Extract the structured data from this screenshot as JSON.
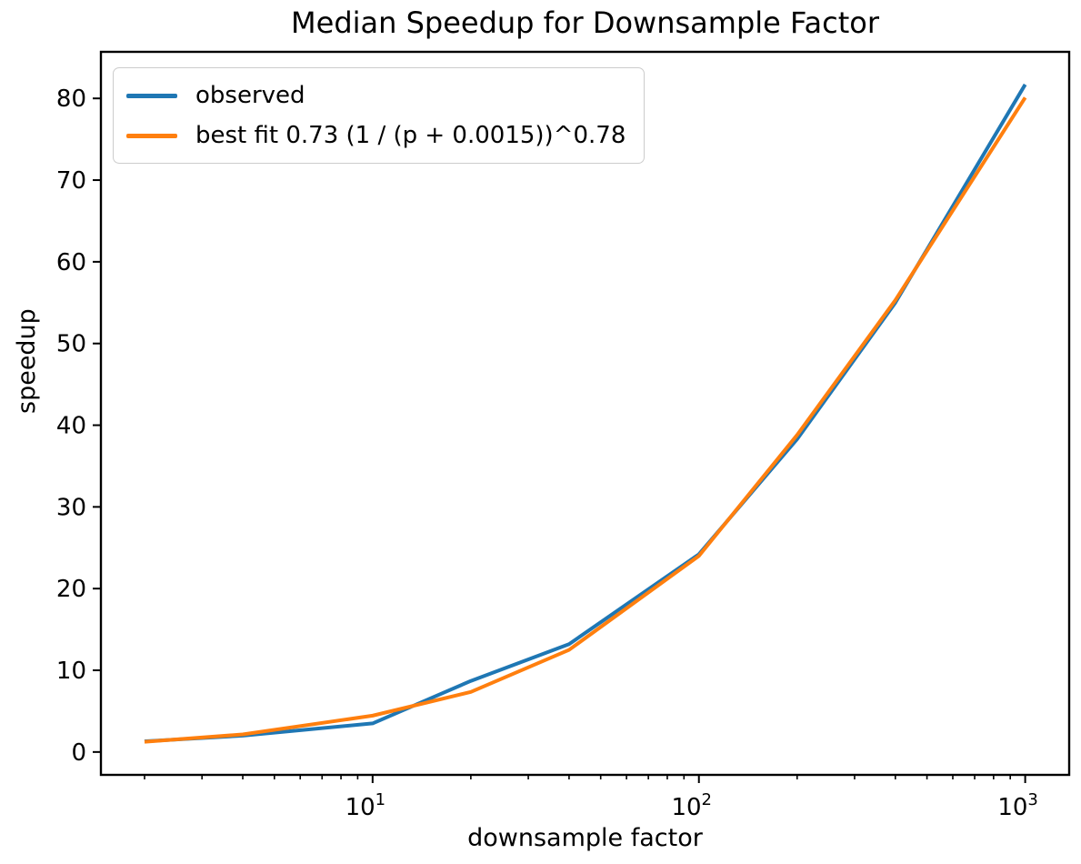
{
  "title": "Median Speedup for Downsample Factor",
  "chart_data": {
    "type": "line",
    "x_scale": "log",
    "x": [
      2,
      4,
      10,
      20,
      40,
      100,
      200,
      400,
      1000
    ],
    "series": [
      {
        "name": "observed",
        "color": "#1f77b4",
        "values": [
          1.3,
          2.0,
          3.5,
          8.7,
          13.2,
          24.2,
          38.3,
          55.0,
          81.7
        ]
      },
      {
        "name": "best fit 0.73 (1 / (p + 0.0015))^0.78",
        "color": "#ff7f0e",
        "values": [
          1.25,
          2.15,
          4.45,
          7.35,
          12.5,
          24.0,
          38.8,
          55.3,
          80.1
        ]
      }
    ],
    "xlabel": "downsample factor",
    "ylabel": "speedup",
    "xlim": [
      1.47,
      1364
    ],
    "ylim": [
      -2.8,
      85.7
    ],
    "y_ticks": [
      0,
      10,
      20,
      30,
      40,
      50,
      60,
      70,
      80
    ],
    "x_major_ticks": [
      {
        "base": 10,
        "exp": 1
      },
      {
        "base": 10,
        "exp": 2
      },
      {
        "base": 10,
        "exp": 3
      }
    ],
    "grid": false,
    "legend_position": "upper left",
    "frame_color": "#000000",
    "background_color": "#ffffff"
  }
}
